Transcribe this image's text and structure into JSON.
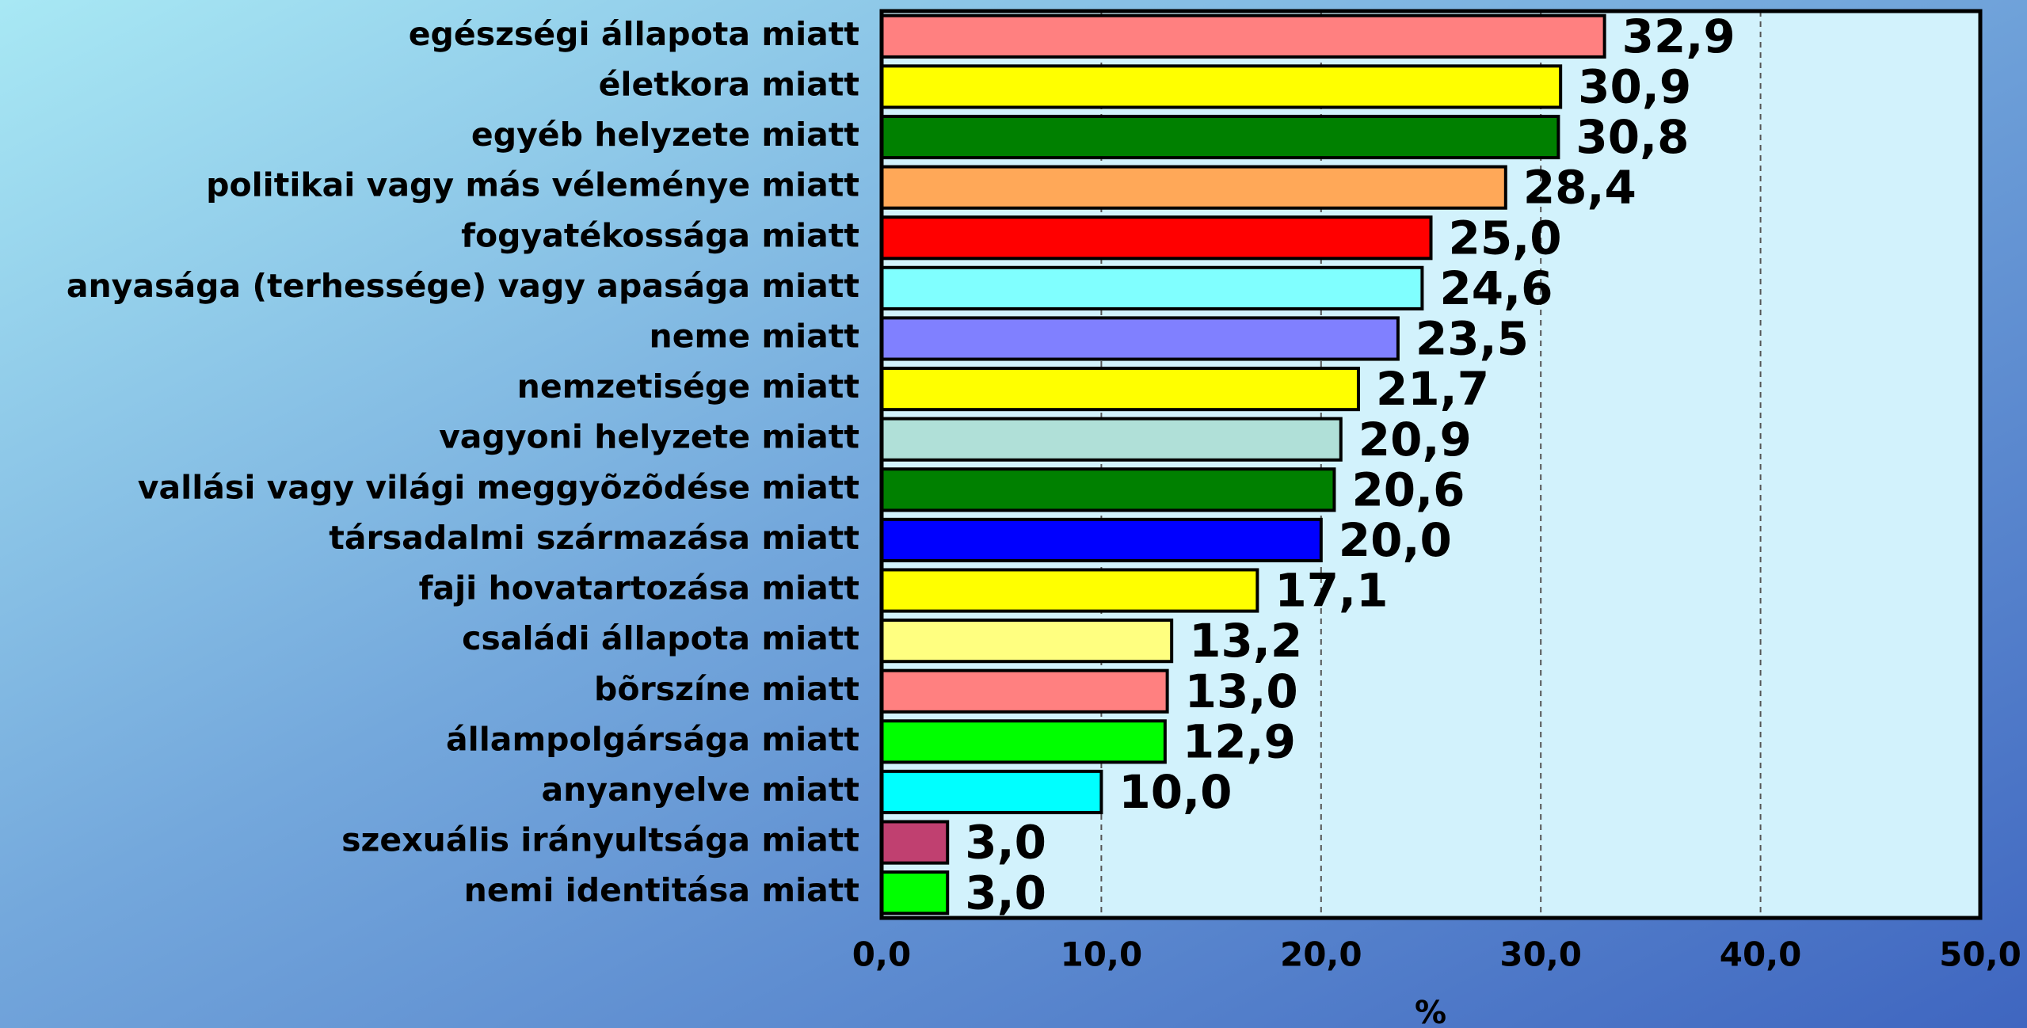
{
  "chart_data": {
    "type": "bar",
    "orientation": "horizontal",
    "categories": [
      "egészségi állapota miatt",
      "életkora miatt",
      "egyéb helyzete miatt",
      "politikai vagy más véleménye miatt",
      "fogyatékossága miatt",
      "anyasága (terhessége) vagy apasága miatt",
      "neme miatt",
      "nemzetisége miatt",
      "vagyoni helyzete miatt",
      "vallási vagy világi meggyõzõdése miatt",
      "társadalmi származása miatt",
      "faji hovatartozása miatt",
      "családi állapota miatt",
      "bõrszíne miatt",
      "állampolgársága miatt",
      "anyanyelve miatt",
      "szexuális irányultsága miatt",
      "nemi identitása miatt"
    ],
    "values": [
      32.9,
      30.9,
      30.8,
      28.4,
      25.0,
      24.6,
      23.5,
      21.7,
      20.9,
      20.6,
      20.0,
      17.1,
      13.2,
      13.0,
      12.9,
      10.0,
      3.0,
      3.0
    ],
    "value_labels": [
      "32,9",
      "30,9",
      "30,8",
      "28,4",
      "25,0",
      "24,6",
      "23,5",
      "21,7",
      "20,9",
      "20,6",
      "20,0",
      "17,1",
      "13,2",
      "13,0",
      "12,9",
      "10,0",
      "3,0",
      "3,0"
    ],
    "colors": [
      "#ff8080",
      "#ffff00",
      "#008000",
      "#ffa858",
      "#ff0000",
      "#80ffff",
      "#8080ff",
      "#ffff00",
      "#b0e0d8",
      "#008000",
      "#0000ff",
      "#ffff00",
      "#ffff80",
      "#ff8080",
      "#00ff00",
      "#00ffff",
      "#c04070",
      "#00ff00"
    ],
    "xlabel": "%",
    "xlim": [
      0,
      50
    ],
    "xticks": [
      {
        "value": 0,
        "label": "0,0"
      },
      {
        "value": 10,
        "label": "10,0"
      },
      {
        "value": 20,
        "label": "20,0"
      },
      {
        "value": 30,
        "label": "30,0"
      },
      {
        "value": 40,
        "label": "40,0"
      },
      {
        "value": 50,
        "label": "50,0"
      }
    ],
    "grid": true
  }
}
